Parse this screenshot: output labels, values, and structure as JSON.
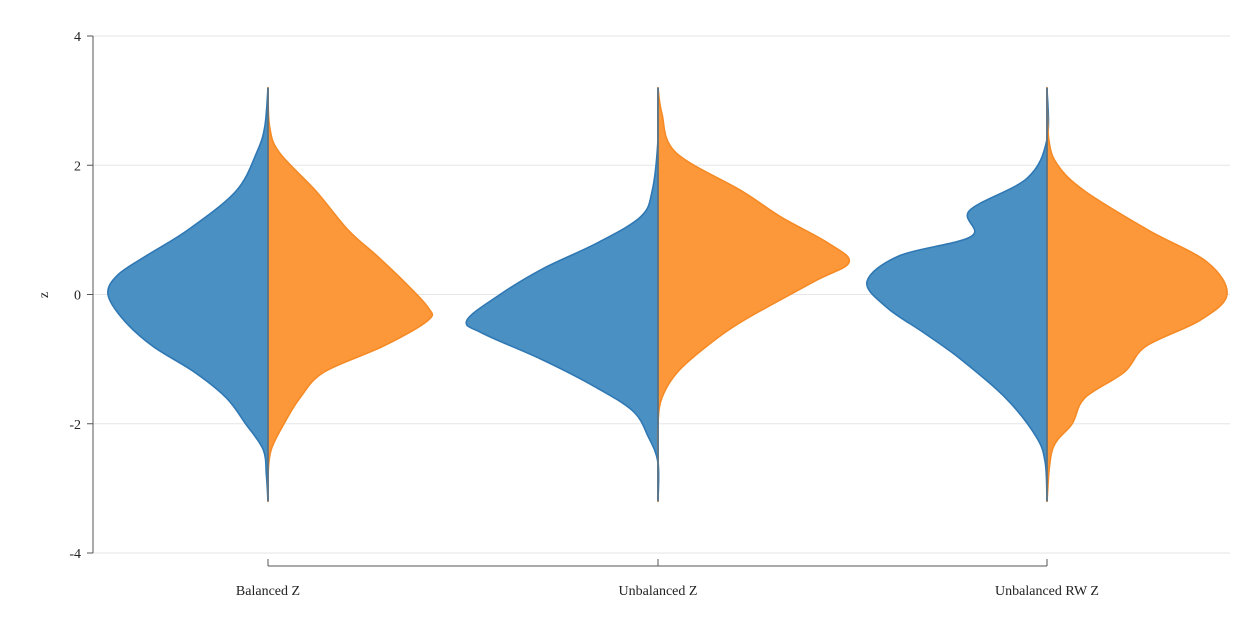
{
  "chart_data": {
    "type": "violin",
    "title": "",
    "xlabel": "",
    "ylabel": "z",
    "ylim": [
      -4,
      4
    ],
    "yticks": [
      4,
      2,
      0,
      -2,
      -4
    ],
    "grid": true,
    "categories": [
      "Balanced Z",
      "Unbalanced Z",
      "Unbalanced RW Z"
    ],
    "colors": {
      "left": "#4a90c2",
      "right": "#fd983a",
      "left_edge": "#2f78b4",
      "right_edge": "#f58a25",
      "grid": "#e6e6e6",
      "axis": "#555555"
    },
    "violins": [
      {
        "category": "Balanced Z",
        "left": [
          [
            3.2,
            0
          ],
          [
            2.6,
            0.02
          ],
          [
            2.2,
            0.07
          ],
          [
            1.6,
            0.2
          ],
          [
            1.0,
            0.5
          ],
          [
            0.6,
            0.76
          ],
          [
            0.3,
            0.94
          ],
          [
            0.0,
            1.0
          ],
          [
            -0.4,
            0.9
          ],
          [
            -0.8,
            0.72
          ],
          [
            -1.2,
            0.46
          ],
          [
            -1.6,
            0.26
          ],
          [
            -2.0,
            0.14
          ],
          [
            -2.4,
            0.03
          ],
          [
            -2.8,
            0.01
          ],
          [
            -3.2,
            0
          ]
        ],
        "right": [
          [
            3.2,
            0
          ],
          [
            2.6,
            0.01
          ],
          [
            2.2,
            0.07
          ],
          [
            1.6,
            0.3
          ],
          [
            1.0,
            0.5
          ],
          [
            0.6,
            0.68
          ],
          [
            0.2,
            0.85
          ],
          [
            -0.2,
            1.0
          ],
          [
            -0.4,
            1.0
          ],
          [
            -0.8,
            0.72
          ],
          [
            -1.2,
            0.35
          ],
          [
            -1.6,
            0.2
          ],
          [
            -2.0,
            0.1
          ],
          [
            -2.4,
            0.02
          ],
          [
            -2.8,
            0
          ],
          [
            -3.2,
            0
          ]
        ]
      },
      {
        "category": "Unbalanced Z",
        "left": [
          [
            3.2,
            0
          ],
          [
            2.4,
            0
          ],
          [
            1.6,
            0.03
          ],
          [
            1.2,
            0.09
          ],
          [
            0.8,
            0.31
          ],
          [
            0.4,
            0.59
          ],
          [
            0.0,
            0.81
          ],
          [
            -0.4,
            0.98
          ],
          [
            -0.6,
            0.9
          ],
          [
            -1.0,
            0.6
          ],
          [
            -1.4,
            0.34
          ],
          [
            -1.8,
            0.13
          ],
          [
            -2.2,
            0.05
          ],
          [
            -2.6,
            0
          ],
          [
            -3.2,
            0
          ]
        ],
        "right": [
          [
            3.2,
            0
          ],
          [
            2.8,
            0.02
          ],
          [
            2.2,
            0.09
          ],
          [
            1.6,
            0.43
          ],
          [
            1.2,
            0.63
          ],
          [
            0.8,
            0.87
          ],
          [
            0.5,
            0.98
          ],
          [
            0.2,
            0.8
          ],
          [
            -0.4,
            0.44
          ],
          [
            -0.8,
            0.25
          ],
          [
            -1.2,
            0.1
          ],
          [
            -1.6,
            0.02
          ],
          [
            -2.0,
            0
          ],
          [
            -2.6,
            0
          ],
          [
            -3.2,
            0
          ]
        ]
      },
      {
        "category": "Unbalanced RW Z",
        "left": [
          [
            3.2,
            0
          ],
          [
            2.4,
            0
          ],
          [
            1.8,
            0.11
          ],
          [
            1.3,
            0.43
          ],
          [
            0.9,
            0.42
          ],
          [
            0.6,
            0.82
          ],
          [
            0.2,
            1.0
          ],
          [
            -0.2,
            0.89
          ],
          [
            -0.6,
            0.68
          ],
          [
            -1.0,
            0.48
          ],
          [
            -1.6,
            0.23
          ],
          [
            -2.2,
            0.06
          ],
          [
            -2.6,
            0.01
          ],
          [
            -3.2,
            0
          ]
        ],
        "right": [
          [
            3.2,
            0
          ],
          [
            2.4,
            0.01
          ],
          [
            2.0,
            0.06
          ],
          [
            1.6,
            0.21
          ],
          [
            1.0,
            0.56
          ],
          [
            0.5,
            0.89
          ],
          [
            0.0,
            1.0
          ],
          [
            -0.4,
            0.85
          ],
          [
            -0.8,
            0.55
          ],
          [
            -1.2,
            0.43
          ],
          [
            -1.6,
            0.21
          ],
          [
            -2.0,
            0.14
          ],
          [
            -2.4,
            0.03
          ],
          [
            -3.2,
            0
          ]
        ]
      }
    ]
  }
}
